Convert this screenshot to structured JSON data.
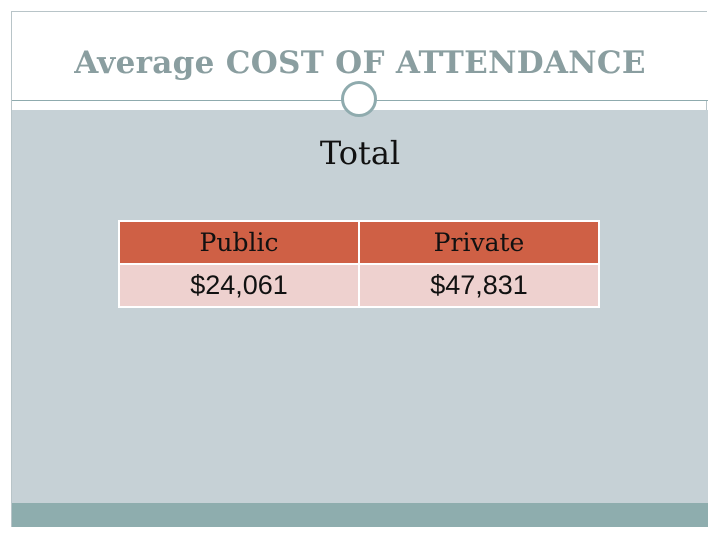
{
  "slide": {
    "title": "Average COST OF ATTENDANCE",
    "subtitle": "Total"
  },
  "table": {
    "headers": [
      "Public",
      "Private"
    ],
    "values": [
      "$24,061",
      "$47,831"
    ]
  },
  "colors": {
    "title": "#8a9ea0",
    "content_background": "#c6d1d6",
    "footer_bar": "#8eadae",
    "table_header": "#cf6045",
    "table_cell": "#eed1cf"
  }
}
